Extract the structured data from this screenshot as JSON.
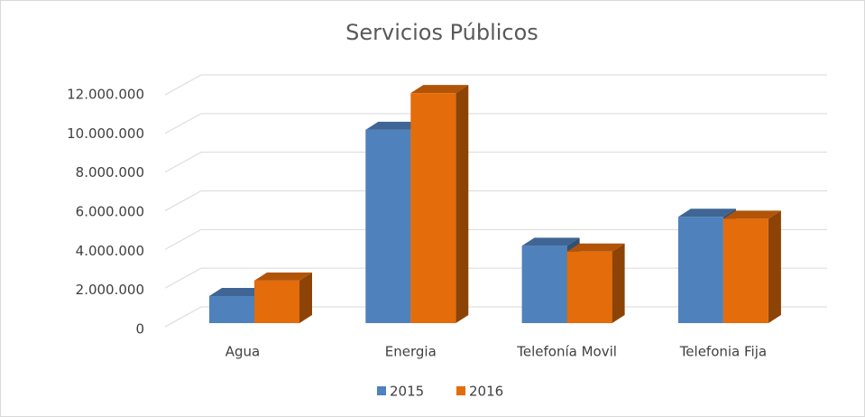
{
  "chart_data": {
    "type": "bar3d",
    "title": "Servicios Públicos",
    "categories": [
      "Agua",
      "Energia",
      "Telefonía Movil",
      "Telefonia Fija"
    ],
    "series": [
      {
        "name": "2015",
        "color": "#4f81bd",
        "values": [
          1400000,
          10000000,
          4000000,
          5500000
        ]
      },
      {
        "name": "2016",
        "color": "#e46c0a",
        "values": [
          2200000,
          11900000,
          3700000,
          5400000
        ]
      }
    ],
    "ylim": [
      0,
      12000000
    ],
    "yticks": [
      0,
      {
        "value": 2000000,
        "label": "2.000.000"
      },
      {
        "value": 4000000,
        "label": "4.000.000"
      },
      {
        "value": 6000000,
        "label": "6.000.000"
      },
      {
        "value": 8000000,
        "label": "8.000.000"
      },
      {
        "value": 10000000,
        "label": "10.000.000"
      },
      {
        "value": 12000000,
        "label": "12.000.000"
      }
    ],
    "grid": true,
    "legend": "bottom"
  }
}
